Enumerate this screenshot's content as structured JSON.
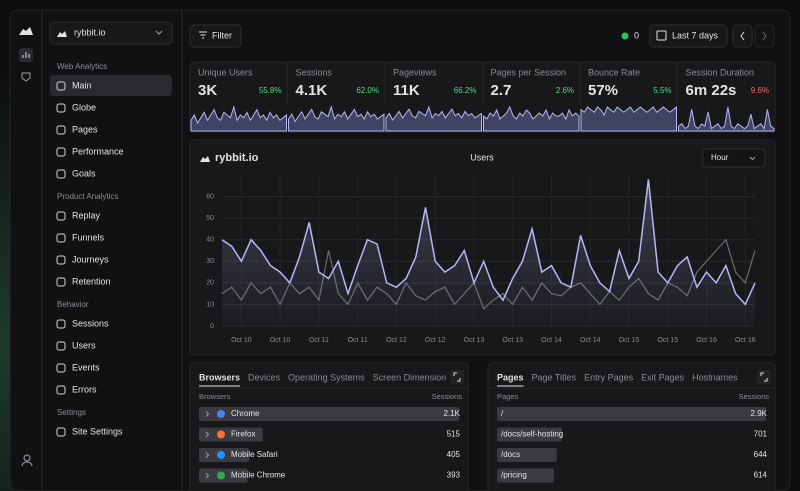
{
  "sidebar": {
    "site": "rybbit.io",
    "sections": [
      {
        "title": "Web Analytics",
        "items": [
          "Main",
          "Globe",
          "Pages",
          "Performance",
          "Goals"
        ]
      },
      {
        "title": "Product Analytics",
        "items": [
          "Replay",
          "Funnels",
          "Journeys",
          "Retention"
        ]
      },
      {
        "title": "Behavior",
        "items": [
          "Sessions",
          "Users",
          "Events",
          "Errors"
        ]
      },
      {
        "title": "Settings",
        "items": [
          "Site Settings"
        ]
      }
    ]
  },
  "topbar": {
    "filter": "Filter",
    "online": "0",
    "range": "Last 7 days"
  },
  "stats": [
    {
      "label": "Unique Users",
      "value": "3K",
      "change": "55.8%",
      "change_color": "#4ade80",
      "spark": [
        4,
        6,
        3,
        5,
        7,
        4,
        6,
        8,
        5,
        4,
        7,
        6,
        5,
        9,
        4,
        6,
        5,
        7,
        4,
        6,
        8,
        5,
        6,
        4,
        7,
        5,
        6,
        4,
        5,
        6
      ]
    },
    {
      "label": "Sessions",
      "value": "4.1K",
      "change": "62.0%",
      "change_color": "#4ade80",
      "spark": [
        5,
        7,
        4,
        6,
        8,
        5,
        7,
        9,
        6,
        5,
        8,
        7,
        6,
        10,
        5,
        7,
        6,
        8,
        5,
        7,
        9,
        6,
        7,
        5,
        8,
        6,
        7,
        5,
        6,
        7
      ]
    },
    {
      "label": "Pageviews",
      "value": "11K",
      "change": "66.2%",
      "change_color": "#4ade80",
      "spark": [
        6,
        8,
        5,
        7,
        9,
        6,
        8,
        10,
        7,
        6,
        9,
        8,
        7,
        11,
        6,
        8,
        7,
        9,
        6,
        8,
        10,
        7,
        8,
        6,
        9,
        7,
        8,
        6,
        7,
        8
      ]
    },
    {
      "label": "Pages per Session",
      "value": "2.7",
      "change": "2.6%",
      "change_color": "#4ade80",
      "spark": [
        5,
        4,
        6,
        5,
        7,
        4,
        5,
        6,
        8,
        5,
        4,
        6,
        5,
        7,
        6,
        4,
        5,
        6,
        5,
        7,
        4,
        6,
        5,
        5,
        6,
        4,
        7,
        5,
        6,
        5
      ]
    },
    {
      "label": "Bounce Rate",
      "value": "57%",
      "change": "5.5%",
      "change_color": "#4ade80",
      "spark": [
        8,
        7,
        9,
        8,
        7,
        9,
        8,
        6,
        9,
        8,
        7,
        9,
        8,
        7,
        8,
        9,
        7,
        8,
        9,
        8,
        7,
        8,
        9,
        7,
        8,
        9,
        8,
        7,
        8,
        9
      ]
    },
    {
      "label": "Session Duration",
      "value": "6m 22s",
      "change": "9.6%",
      "change_color": "#f87171",
      "spark": [
        2,
        3,
        1,
        2,
        9,
        2,
        1,
        3,
        2,
        8,
        1,
        2,
        3,
        1,
        2,
        10,
        2,
        1,
        3,
        2,
        1,
        2,
        7,
        1,
        2,
        3,
        1,
        9,
        2,
        1
      ]
    }
  ],
  "chart_data": {
    "type": "line",
    "site": "rybbit.io",
    "title": "Users",
    "interval": "Hour",
    "categories": [
      null,
      null,
      "Oct 10",
      null,
      null,
      null,
      "Oct 10",
      null,
      null,
      null,
      "Oct 11",
      null,
      null,
      null,
      "Oct 11",
      null,
      null,
      null,
      "Oct 12",
      null,
      null,
      null,
      "Oct 12",
      null,
      null,
      null,
      "Oct 13",
      null,
      null,
      null,
      "Oct 13",
      null,
      null,
      null,
      "Oct 14",
      null,
      null,
      null,
      "Oct 14",
      null,
      null,
      null,
      "Oct 15",
      null,
      null,
      null,
      "Oct 15",
      null,
      null,
      null,
      "Oct 16",
      null,
      null,
      null,
      "Oct 16",
      null
    ],
    "series": [
      {
        "color": "#6b6b70",
        "values": [
          15,
          18,
          12,
          20,
          15,
          18,
          10,
          20,
          15,
          18,
          12,
          35,
          15,
          10,
          20,
          12,
          18,
          15,
          10,
          20,
          14,
          12,
          16,
          18,
          10,
          15,
          20,
          8,
          12,
          15,
          10,
          18,
          12,
          20,
          15,
          14,
          18,
          20,
          15,
          10,
          16,
          12,
          18,
          22,
          15,
          12,
          20,
          18,
          14,
          25,
          30,
          35,
          40,
          25,
          20,
          35
        ]
      },
      {
        "color": "#b4b8f5",
        "values": [
          40,
          37,
          30,
          40,
          35,
          28,
          25,
          20,
          32,
          48,
          25,
          22,
          30,
          15,
          28,
          40,
          38,
          20,
          18,
          22,
          32,
          55,
          30,
          25,
          28,
          35,
          20,
          30,
          18,
          12,
          22,
          30,
          45,
          25,
          28,
          20,
          18,
          42,
          28,
          20,
          16,
          35,
          22,
          30,
          68,
          25,
          20,
          28,
          32,
          18,
          25,
          20,
          28,
          15,
          10,
          20
        ]
      }
    ],
    "ylim": [
      0,
      70
    ],
    "yticks": [
      0,
      10,
      20,
      30,
      40,
      50,
      60
    ],
    "grid": true
  },
  "tables": [
    {
      "tabs": [
        "Browsers",
        "Devices",
        "Operating Systems",
        "Screen Dimension"
      ],
      "header": [
        "Browsers",
        "Sessions"
      ],
      "rows": [
        {
          "label": "Chrome",
          "value": 2100,
          "value_label": "2.1K"
        },
        {
          "label": "Firefox",
          "value": 515,
          "value_label": "515"
        },
        {
          "label": "Mobile Safari",
          "value": 405,
          "value_label": "405"
        },
        {
          "label": "Mobile Chrome",
          "value": 393,
          "value_label": "393"
        }
      ]
    },
    {
      "tabs": [
        "Pages",
        "Page Titles",
        "Entry Pages",
        "Exit Pages",
        "Hostnames"
      ],
      "header": [
        "Pages",
        "Sessions"
      ],
      "rows": [
        {
          "label": "/",
          "value": 2900,
          "value_label": "2.9K"
        },
        {
          "label": "/docs/self-hosting",
          "value": 701,
          "value_label": "701"
        },
        {
          "label": "/docs",
          "value": 644,
          "value_label": "644"
        },
        {
          "label": "/pricing",
          "value": 614,
          "value_label": "614"
        }
      ]
    }
  ]
}
